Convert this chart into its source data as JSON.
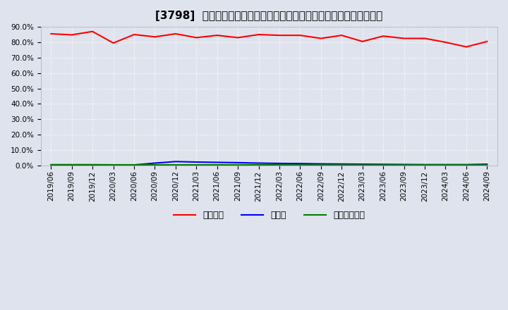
{
  "title": "[3798]  自己資本、のれん、繰延税金資産の総資産に対する比率の推移",
  "x_labels": [
    "2019/06",
    "2019/09",
    "2019/12",
    "2020/03",
    "2020/06",
    "2020/09",
    "2020/12",
    "2021/03",
    "2021/06",
    "2021/09",
    "2021/12",
    "2022/03",
    "2022/06",
    "2022/09",
    "2022/12",
    "2023/03",
    "2023/06",
    "2023/09",
    "2023/12",
    "2024/03",
    "2024/06",
    "2024/09"
  ],
  "jiko_shihon": [
    85.5,
    84.8,
    87.0,
    79.5,
    85.0,
    83.5,
    85.5,
    83.0,
    84.5,
    83.0,
    85.0,
    84.5,
    84.5,
    82.5,
    84.5,
    80.5,
    84.0,
    82.5,
    82.5,
    80.0,
    77.0,
    80.5
  ],
  "noren": [
    0.3,
    0.3,
    0.3,
    0.3,
    0.3,
    1.5,
    2.5,
    2.2,
    2.0,
    1.8,
    1.5,
    1.3,
    1.2,
    1.0,
    0.9,
    0.8,
    0.7,
    0.6,
    0.5,
    0.5,
    0.5,
    0.8
  ],
  "kurinobezeikin": [
    0.5,
    0.5,
    0.5,
    0.4,
    0.4,
    0.4,
    0.4,
    0.4,
    0.4,
    0.4,
    0.4,
    0.3,
    0.3,
    0.3,
    0.3,
    0.3,
    0.3,
    0.3,
    0.3,
    0.3,
    0.3,
    0.3
  ],
  "color_jiko": "#ff0000",
  "color_noren": "#0000ff",
  "color_kurin": "#008000",
  "label_jiko": "自己資本",
  "label_noren": "のれん",
  "label_kurin": "繰延税金資産",
  "ylim_min": 0.0,
  "ylim_max": 90.0,
  "yticks": [
    0.0,
    10.0,
    20.0,
    30.0,
    40.0,
    50.0,
    60.0,
    70.0,
    80.0,
    90.0
  ],
  "bg_color": "#dfe3ee",
  "grid_color": "#ffffff",
  "title_fontsize": 11,
  "axis_fontsize": 7.5,
  "legend_fontsize": 9,
  "linewidth": 1.5
}
